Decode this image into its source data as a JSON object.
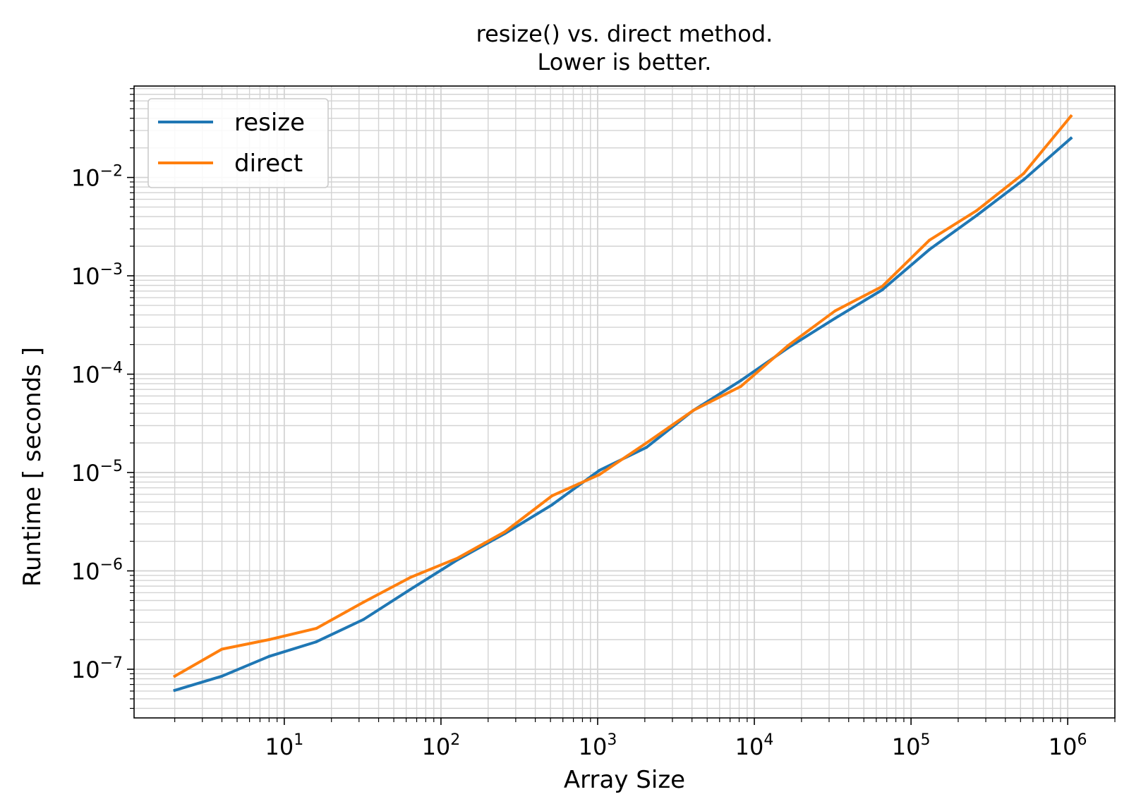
{
  "chart_data": {
    "type": "line",
    "title": [
      "resize() vs. direct method.",
      "Lower is better."
    ],
    "xlabel": "Array Size",
    "ylabel": "Runtime [ seconds ]",
    "xscale": "log",
    "yscale": "log",
    "xlim": [
      1.1,
      2000000
    ],
    "ylim": [
      3.2e-08,
      0.085
    ],
    "grid": "major and minor",
    "legend_position": "top-left",
    "x": [
      2,
      4,
      8,
      16,
      32,
      64,
      128,
      256,
      512,
      1024,
      2048,
      4096,
      8192,
      16384,
      32768,
      65536,
      131072,
      262144,
      524288,
      1048576
    ],
    "x_ticks": [
      {
        "base": "10",
        "exp": "1",
        "value": 10
      },
      {
        "base": "10",
        "exp": "2",
        "value": 100
      },
      {
        "base": "10",
        "exp": "3",
        "value": 1000
      },
      {
        "base": "10",
        "exp": "4",
        "value": 10000
      },
      {
        "base": "10",
        "exp": "5",
        "value": 100000
      },
      {
        "base": "10",
        "exp": "6",
        "value": 1000000
      }
    ],
    "y_ticks": [
      {
        "base": "10",
        "exp": "−7",
        "value": 1e-07
      },
      {
        "base": "10",
        "exp": "−6",
        "value": 1e-06
      },
      {
        "base": "10",
        "exp": "−5",
        "value": 1e-05
      },
      {
        "base": "10",
        "exp": "−4",
        "value": 0.0001
      },
      {
        "base": "10",
        "exp": "−3",
        "value": 0.001
      },
      {
        "base": "10",
        "exp": "−2",
        "value": 0.01
      }
    ],
    "series": [
      {
        "name": "resize",
        "color": "#1f77b4",
        "values": [
          6.1e-08,
          8.5e-08,
          1.35e-07,
          1.9e-07,
          3.2e-07,
          6.5e-07,
          1.3e-06,
          2.4e-06,
          4.7e-06,
          1.05e-05,
          1.8e-05,
          4.3e-05,
          8.6e-05,
          0.000185,
          0.00037,
          0.00072,
          0.00185,
          0.0041,
          0.0095,
          0.025
        ]
      },
      {
        "name": "direct",
        "color": "#ff7f0e",
        "values": [
          8.5e-08,
          1.6e-07,
          2e-07,
          2.6e-07,
          4.8e-07,
          8.6e-07,
          1.35e-06,
          2.5e-06,
          5.8e-06,
          9.5e-06,
          2e-05,
          4.3e-05,
          7.5e-05,
          0.000195,
          0.00044,
          0.00078,
          0.0023,
          0.0046,
          0.011,
          0.042
        ]
      }
    ]
  }
}
